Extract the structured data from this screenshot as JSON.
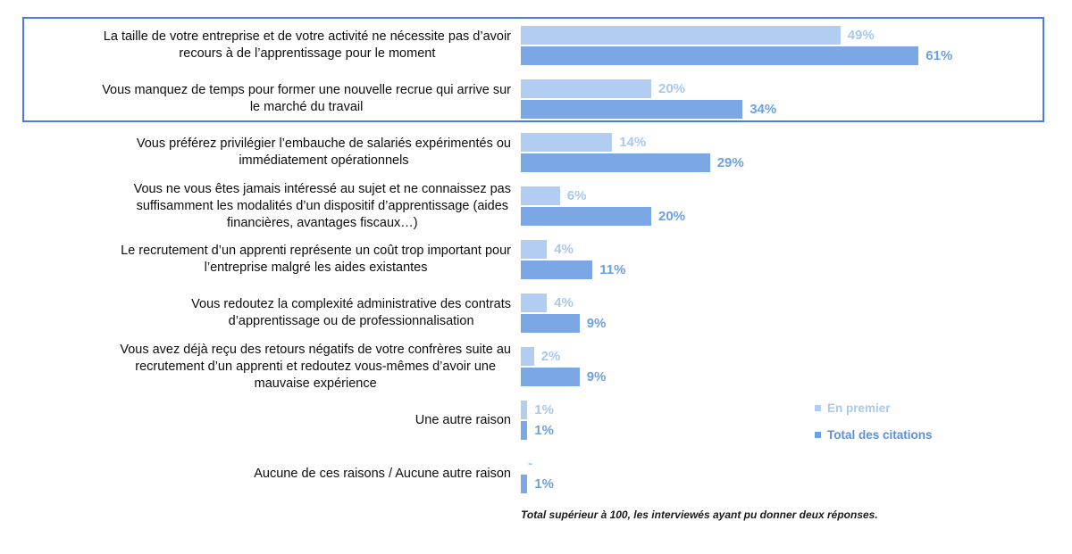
{
  "colors": {
    "bar_light": "#B1CDF1",
    "bar_dark": "#7BA8E5",
    "value_light_text": "#A9C8EF",
    "value_dark_text": "#6CA0E4",
    "legend_dark_text": "#5991DD",
    "highlight_border": "#4A7DDB"
  },
  "legend": {
    "position": "right-bottom",
    "items": [
      {
        "label": "En premier",
        "color": "#B1CDF1"
      },
      {
        "label": "Total des citations",
        "color": "#5991DD"
      }
    ]
  },
  "footnote": "Total supérieur à 100, les interviewés ayant pu donner deux réponses.",
  "chart_data": {
    "type": "bar",
    "orientation": "horizontal",
    "unit": "%",
    "xlim": [
      0,
      80
    ],
    "grid": false,
    "highlighted_rows": [
      0,
      1
    ],
    "categories": [
      "La taille de votre entreprise et de votre activité ne nécessite pas d’avoir\nrecours à de l’apprentissage pour le moment",
      "Vous manquez de temps pour former une nouvelle recrue qui arrive sur\nle marché du travail",
      "Vous préférez privilégier l’embauche de salariés expérimentés ou\nimmédiatement opérationnels",
      "Vous ne vous êtes jamais intéressé au sujet et ne connaissez pas\nsuffisamment les modalités d’un dispositif d’apprentissage (aides\nfinancières, avantages fiscaux…)",
      "Le recrutement d’un apprenti représente un coût trop important pour\nl’entreprise malgré les aides existantes",
      "Vous redoutez la complexité administrative des contrats\nd’apprentissage ou de professionnalisation",
      "Vous avez déjà reçu des retours négatifs de votre confrères suite au\nrecrutement d’un apprenti et redoutez vous-mêmes d’avoir une\nmauvaise expérience",
      "Une autre raison",
      "Aucune de ces raisons / Aucune autre raison"
    ],
    "series": [
      {
        "name": "En premier",
        "values": [
          49,
          20,
          14,
          6,
          4,
          4,
          2,
          1,
          0
        ]
      },
      {
        "name": "Total des citations",
        "values": [
          61,
          34,
          29,
          20,
          11,
          9,
          9,
          1,
          1
        ]
      }
    ],
    "value_labels": [
      [
        "49%",
        "61%"
      ],
      [
        "20%",
        "34%"
      ],
      [
        "14%",
        "29%"
      ],
      [
        "6%",
        "20%"
      ],
      [
        "4%",
        "11%"
      ],
      [
        "4%",
        "9%"
      ],
      [
        "2%",
        "9%"
      ],
      [
        "1%",
        "1%"
      ],
      [
        "-",
        "1%"
      ]
    ]
  }
}
